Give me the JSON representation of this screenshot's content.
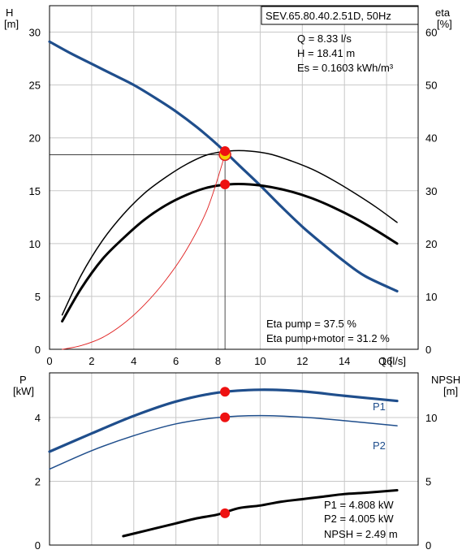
{
  "chart_data": [
    {
      "type": "line",
      "panel": "pump-performance",
      "title": "SEV.65.80.40.2.51D, 50Hz",
      "xlabel": "Q [l/s]",
      "ylabel_left": [
        "H",
        "[m]"
      ],
      "ylabel_right": [
        "eta",
        "[%]"
      ],
      "xlim": [
        0,
        17.5
      ],
      "ylim_left": [
        0,
        32.5
      ],
      "ylim_right": [
        0,
        65
      ],
      "xticks": [
        "0",
        "2",
        "4",
        "6",
        "8",
        "10",
        "12",
        "14",
        "16"
      ],
      "yticks_left": [
        "0",
        "5",
        "10",
        "15",
        "20",
        "25",
        "30"
      ],
      "yticks_right": [
        "0",
        "10",
        "20",
        "30",
        "40",
        "50",
        "60"
      ],
      "grid": true,
      "series": [
        {
          "axis": "left",
          "color": "#1f4e8c",
          "width": 3.2,
          "x": [
            0,
            1,
            2,
            3,
            4,
            5,
            6,
            7,
            8,
            9,
            10,
            11,
            12,
            13,
            14,
            15,
            16.5
          ],
          "y": [
            29.1,
            28.0,
            27.0,
            26.0,
            25.0,
            23.8,
            22.5,
            21.0,
            19.3,
            17.4,
            15.5,
            13.5,
            11.6,
            9.9,
            8.3,
            6.9,
            5.5
          ]
        },
        {
          "axis": "right",
          "color": "#000000",
          "width": 1.5,
          "x": [
            0.6,
            1.5,
            2.5,
            3.5,
            4.5,
            5.5,
            6.5,
            7.5,
            8.5,
            9.5,
            10.5,
            11.5,
            12.5,
            13.5,
            14.5,
            15.5,
            16.5
          ],
          "y": [
            6.5,
            14.0,
            20.5,
            25.5,
            29.5,
            32.5,
            35.0,
            36.8,
            37.5,
            37.5,
            36.9,
            35.6,
            34.0,
            31.9,
            29.5,
            26.9,
            24.0
          ]
        },
        {
          "axis": "right",
          "color": "#000000",
          "width": 3,
          "x": [
            0.6,
            1.5,
            2.5,
            3.5,
            4.5,
            5.5,
            6.5,
            7.5,
            8.5,
            9.5,
            10.5,
            11.5,
            12.5,
            13.5,
            14.5,
            15.5,
            16.5
          ],
          "y": [
            5.3,
            11.5,
            17.0,
            21.0,
            24.5,
            27.2,
            29.2,
            30.6,
            31.2,
            31.2,
            30.7,
            29.8,
            28.5,
            26.8,
            24.8,
            22.5,
            20.0
          ]
        },
        {
          "axis": "left",
          "color": "#e02020",
          "width": 0.9,
          "x": [
            0.6,
            1.5,
            2.5,
            3.5,
            4.5,
            5.5,
            6.5,
            7.5,
            8.33
          ],
          "y": [
            0.0,
            0.35,
            1.1,
            2.4,
            4.2,
            6.5,
            9.4,
            13.3,
            18.41
          ]
        }
      ],
      "operating_point": {
        "x": 8.33,
        "h": 18.41,
        "eta_pump": 37.5,
        "eta_total": 31.2
      },
      "info_lines": [
        "Q = 8.33 l/s",
        "H = 18.41 m",
        "Es = 0.1603 kWh/m³"
      ],
      "annotations": [
        "Eta pump = 37.5 %",
        "Eta pump+motor = 31.2 %"
      ]
    },
    {
      "type": "line",
      "panel": "power-npsh",
      "ylabel_left": [
        "P",
        "[kW]"
      ],
      "ylabel_right": [
        "NPSH",
        "[m]"
      ],
      "xlim": [
        0,
        17.5
      ],
      "ylim_left": [
        0,
        5.4
      ],
      "ylim_right": [
        0,
        13.5
      ],
      "yticks_left": [
        "0",
        "2",
        "4"
      ],
      "yticks_right": [
        "0",
        "5",
        "10"
      ],
      "grid": true,
      "series": [
        {
          "name": "P1",
          "axis": "left",
          "color": "#1f4e8c",
          "width": 3.2,
          "x": [
            0,
            2,
            4,
            6,
            8,
            10,
            12,
            14,
            16.5
          ],
          "y": [
            2.93,
            3.5,
            4.05,
            4.5,
            4.78,
            4.87,
            4.82,
            4.68,
            4.52
          ]
        },
        {
          "name": "P2",
          "axis": "left",
          "color": "#1f4e8c",
          "width": 1.5,
          "x": [
            0,
            2,
            4,
            6,
            8,
            10,
            12,
            14,
            16.5
          ],
          "y": [
            2.38,
            2.96,
            3.43,
            3.8,
            4.0,
            4.06,
            4.01,
            3.9,
            3.74
          ]
        },
        {
          "axis": "right",
          "color": "#000000",
          "width": 3,
          "x": [
            3.5,
            4,
            5,
            6,
            7,
            8,
            9,
            10,
            11,
            12,
            13,
            14,
            15,
            16.5
          ],
          "y": [
            0.7,
            0.9,
            1.3,
            1.7,
            2.1,
            2.4,
            2.9,
            3.1,
            3.4,
            3.6,
            3.8,
            4.0,
            4.1,
            4.3
          ]
        }
      ],
      "operating_points": [
        {
          "x": 8.33,
          "y": 4.808,
          "axis": "left"
        },
        {
          "x": 8.33,
          "y": 4.005,
          "axis": "left"
        },
        {
          "x": 8.33,
          "y": 2.49,
          "axis": "right"
        }
      ],
      "info_lines": [
        "P1 = 4.808 kW",
        "P2 = 4.005 kW",
        "NPSH = 2.49 m"
      ]
    }
  ]
}
